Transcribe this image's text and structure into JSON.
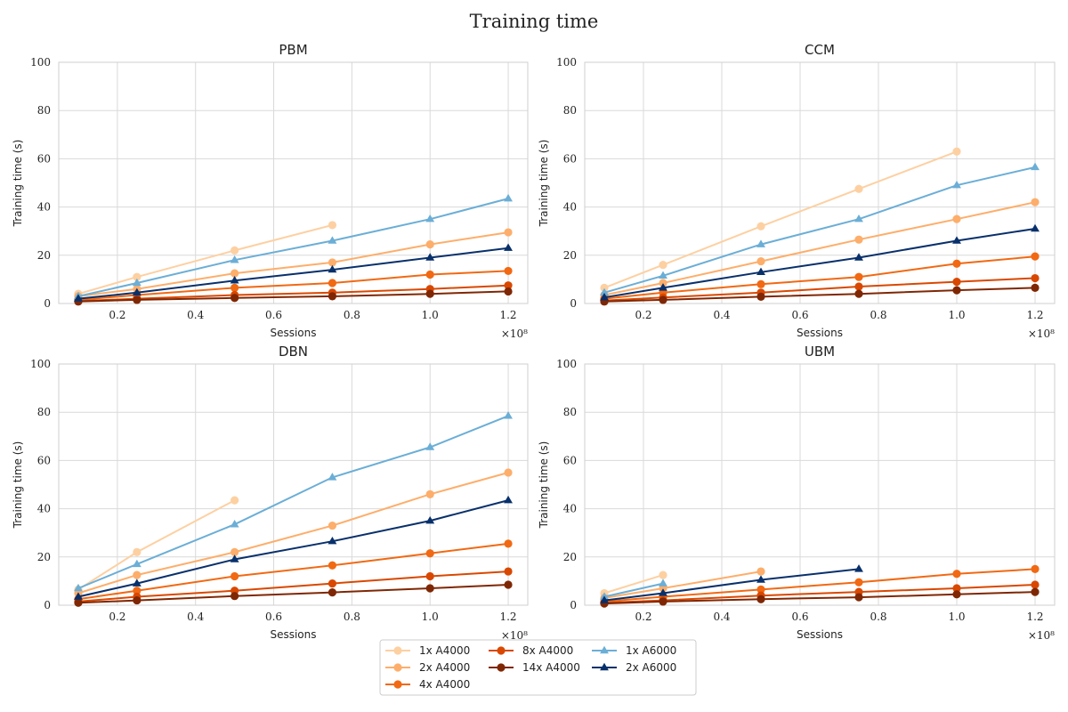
{
  "chart_data": {
    "type": "line",
    "title": "Training time",
    "legend": {
      "placement": "bottom-center",
      "entries": [
        "1x A4000",
        "2x A4000",
        "4x A4000",
        "8x A4000",
        "14x A4000",
        "1x A6000",
        "2x A6000"
      ]
    },
    "series_styles": [
      {
        "name": "1x A4000",
        "color": "#fdd0a2",
        "marker": "circle"
      },
      {
        "name": "2x A4000",
        "color": "#fdae6b",
        "marker": "circle"
      },
      {
        "name": "4x A4000",
        "color": "#f16913",
        "marker": "circle"
      },
      {
        "name": "8x A4000",
        "color": "#d94801",
        "marker": "circle"
      },
      {
        "name": "14x A4000",
        "color": "#7f2704",
        "marker": "circle"
      },
      {
        "name": "1x A6000",
        "color": "#6baed6",
        "marker": "triangle"
      },
      {
        "name": "2x A6000",
        "color": "#08306b",
        "marker": "triangle"
      }
    ],
    "grid": true,
    "panels": [
      {
        "title": "PBM",
        "xlabel": "Sessions",
        "ylabel": "Training time (s)",
        "x_offset_label": "×10⁸",
        "xlim": [
          0.05,
          1.25
        ],
        "ylim": [
          0,
          100
        ],
        "xticks": [
          "0.2",
          "0.4",
          "0.6",
          "0.8",
          "1.0",
          "1.2"
        ],
        "yticks": [
          "0",
          "20",
          "40",
          "60",
          "80",
          "100"
        ],
        "series": [
          {
            "name": "1x A4000",
            "x": [
              0.1,
              0.25,
              0.5,
              0.75
            ],
            "y": [
              4,
              11,
              22,
              32.5
            ]
          },
          {
            "name": "2x A4000",
            "x": [
              0.1,
              0.25,
              0.5,
              0.75,
              1.0,
              1.2
            ],
            "y": [
              3,
              6,
              12.5,
              17,
              24.5,
              29.5
            ]
          },
          {
            "name": "4x A4000",
            "x": [
              0.1,
              0.25,
              0.5,
              0.75,
              1.0,
              1.2
            ],
            "y": [
              1.5,
              3.5,
              6.5,
              8.5,
              12,
              13.5
            ]
          },
          {
            "name": "8x A4000",
            "x": [
              0.1,
              0.25,
              0.5,
              0.75,
              1.0,
              1.2
            ],
            "y": [
              1,
              2,
              3.5,
              4.5,
              6,
              7.5
            ]
          },
          {
            "name": "14x A4000",
            "x": [
              0.1,
              0.25,
              0.5,
              0.75,
              1.0,
              1.2
            ],
            "y": [
              0.8,
              1.5,
              2.3,
              3,
              4,
              5
            ]
          },
          {
            "name": "1x A6000",
            "x": [
              0.1,
              0.25,
              0.5,
              0.75,
              1.0,
              1.2
            ],
            "y": [
              3,
              8.5,
              18,
              26,
              35,
              43.5
            ]
          },
          {
            "name": "2x A6000",
            "x": [
              0.1,
              0.25,
              0.5,
              0.75,
              1.0,
              1.2
            ],
            "y": [
              2,
              4.5,
              9.5,
              14,
              19,
              23
            ]
          }
        ]
      },
      {
        "title": "CCM",
        "xlabel": "Sessions",
        "ylabel": "Training time (s)",
        "x_offset_label": "×10⁸",
        "xlim": [
          0.05,
          1.25
        ],
        "ylim": [
          0,
          100
        ],
        "xticks": [
          "0.2",
          "0.4",
          "0.6",
          "0.8",
          "1.0",
          "1.2"
        ],
        "yticks": [
          "0",
          "20",
          "40",
          "60",
          "80",
          "100"
        ],
        "series": [
          {
            "name": "1x A4000",
            "x": [
              0.1,
              0.25,
              0.5,
              0.75,
              1.0
            ],
            "y": [
              6.5,
              16,
              32,
              47.5,
              63
            ]
          },
          {
            "name": "2x A4000",
            "x": [
              0.1,
              0.25,
              0.5,
              0.75,
              1.0,
              1.2
            ],
            "y": [
              3.5,
              8.5,
              17.5,
              26.5,
              35,
              42
            ]
          },
          {
            "name": "4x A4000",
            "x": [
              0.1,
              0.25,
              0.5,
              0.75,
              1.0,
              1.2
            ],
            "y": [
              2,
              4.5,
              8,
              11,
              16.5,
              19.5
            ]
          },
          {
            "name": "8x A4000",
            "x": [
              0.1,
              0.25,
              0.5,
              0.75,
              1.0,
              1.2
            ],
            "y": [
              1.2,
              2.5,
              4.5,
              7,
              9,
              10.5
            ]
          },
          {
            "name": "14x A4000",
            "x": [
              0.1,
              0.25,
              0.5,
              0.75,
              1.0,
              1.2
            ],
            "y": [
              0.8,
              1.5,
              2.8,
              4,
              5.5,
              6.5
            ]
          },
          {
            "name": "1x A6000",
            "x": [
              0.1,
              0.25,
              0.5,
              0.75,
              1.0,
              1.2
            ],
            "y": [
              4.5,
              11.5,
              24.5,
              35,
              49,
              56.5
            ]
          },
          {
            "name": "2x A6000",
            "x": [
              0.1,
              0.25,
              0.5,
              0.75,
              1.0,
              1.2
            ],
            "y": [
              2.5,
              6.5,
              13,
              19,
              26,
              31
            ]
          }
        ]
      },
      {
        "title": "DBN",
        "xlabel": "Sessions",
        "ylabel": "Training time (s)",
        "x_offset_label": "×10⁸",
        "xlim": [
          0.05,
          1.25
        ],
        "ylim": [
          0,
          100
        ],
        "xticks": [
          "0.2",
          "0.4",
          "0.6",
          "0.8",
          "1.0",
          "1.2"
        ],
        "yticks": [
          "0",
          "20",
          "40",
          "60",
          "80",
          "100"
        ],
        "series": [
          {
            "name": "1x A4000",
            "x": [
              0.1,
              0.25,
              0.5
            ],
            "y": [
              6.5,
              22,
              43.5
            ]
          },
          {
            "name": "2x A4000",
            "x": [
              0.1,
              0.25,
              0.5,
              0.75,
              1.0,
              1.2
            ],
            "y": [
              5,
              12.5,
              22,
              33,
              46,
              55
            ]
          },
          {
            "name": "4x A4000",
            "x": [
              0.1,
              0.25,
              0.5,
              0.75,
              1.0,
              1.2
            ],
            "y": [
              2.5,
              6,
              12,
              16.5,
              21.5,
              25.5
            ]
          },
          {
            "name": "8x A4000",
            "x": [
              0.1,
              0.25,
              0.5,
              0.75,
              1.0,
              1.2
            ],
            "y": [
              1.5,
              3.5,
              6,
              9,
              12,
              14
            ]
          },
          {
            "name": "14x A4000",
            "x": [
              0.1,
              0.25,
              0.5,
              0.75,
              1.0,
              1.2
            ],
            "y": [
              1,
              2,
              3.8,
              5.3,
              7,
              8.5
            ]
          },
          {
            "name": "1x A6000",
            "x": [
              0.1,
              0.25,
              0.5,
              0.75,
              1.0,
              1.2
            ],
            "y": [
              7,
              17,
              33.5,
              53,
              65.5,
              78.5
            ]
          },
          {
            "name": "2x A6000",
            "x": [
              0.1,
              0.25,
              0.5,
              0.75,
              1.0,
              1.2
            ],
            "y": [
              3.5,
              9,
              19,
              26.5,
              35,
              43.5
            ]
          }
        ]
      },
      {
        "title": "UBM",
        "xlabel": "Sessions",
        "ylabel": "Training time (s)",
        "x_offset_label": "×10⁸",
        "xlim": [
          0.05,
          1.25
        ],
        "ylim": [
          0,
          100
        ],
        "xticks": [
          "0.2",
          "0.4",
          "0.6",
          "0.8",
          "1.0",
          "1.2"
        ],
        "yticks": [
          "0",
          "20",
          "40",
          "60",
          "80",
          "100"
        ],
        "series": [
          {
            "name": "1x A4000",
            "x": [
              0.1,
              0.25
            ],
            "y": [
              5,
              12.5
            ]
          },
          {
            "name": "2x A4000",
            "x": [
              0.1,
              0.25,
              0.5
            ],
            "y": [
              3,
              7,
              14
            ]
          },
          {
            "name": "4x A4000",
            "x": [
              0.1,
              0.25,
              0.5,
              0.75,
              1.0,
              1.2
            ],
            "y": [
              1.5,
              3.5,
              6.5,
              9.5,
              13,
              15
            ]
          },
          {
            "name": "8x A4000",
            "x": [
              0.1,
              0.25,
              0.5,
              0.75,
              1.0,
              1.2
            ],
            "y": [
              1,
              2,
              4,
              5.5,
              7,
              8.5
            ]
          },
          {
            "name": "14x A4000",
            "x": [
              0.1,
              0.25,
              0.5,
              0.75,
              1.0,
              1.2
            ],
            "y": [
              0.7,
              1.5,
              2.5,
              3.3,
              4.5,
              5.5
            ]
          },
          {
            "name": "1x A6000",
            "x": [
              0.1,
              0.25
            ],
            "y": [
              3.5,
              9
            ]
          },
          {
            "name": "2x A6000",
            "x": [
              0.1,
              0.25,
              0.5,
              0.75
            ],
            "y": [
              2,
              5,
              10.5,
              15
            ]
          }
        ]
      }
    ]
  }
}
